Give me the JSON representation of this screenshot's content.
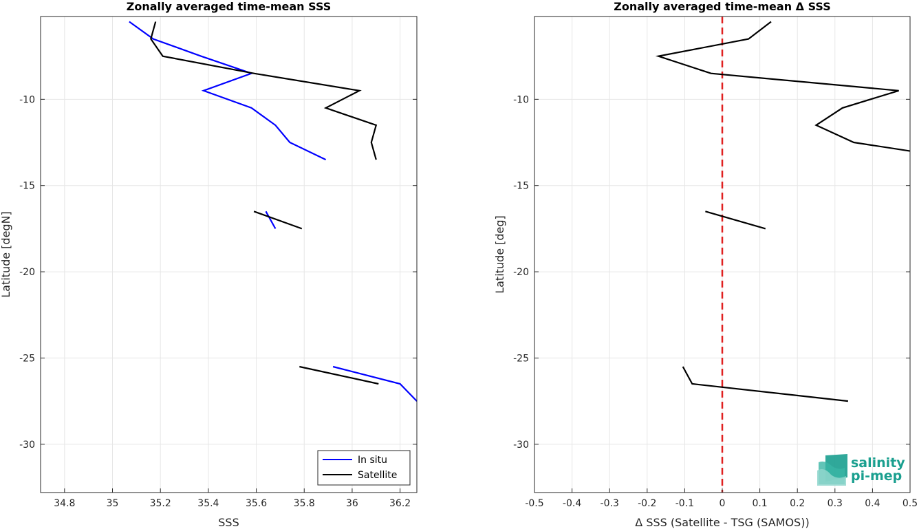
{
  "chart_data": [
    {
      "type": "line",
      "title": "Zonally averaged time-mean SSS",
      "xlabel": "SSS",
      "ylabel": "Latitude [degN]",
      "xlim": [
        34.7,
        36.27
      ],
      "ylim": [
        -32.8,
        -5.2
      ],
      "xticks": [
        34.8,
        35,
        35.2,
        35.4,
        35.6,
        35.8,
        36,
        36.2
      ],
      "xtick_labels": [
        "34.8",
        "35",
        "35.2",
        "35.4",
        "35.6",
        "35.8",
        "36",
        "36.2"
      ],
      "yticks": [
        -10,
        -15,
        -20,
        -25,
        -30
      ],
      "ytick_labels": [
        "-10",
        "-15",
        "-20",
        "-25",
        "-30"
      ],
      "grid": true,
      "legend_position": "bottom-right",
      "series": [
        {
          "name": "In situ",
          "color": "#0000ff",
          "segments": [
            [
              [
                35.07,
                -5.5
              ],
              [
                35.17,
                -6.5
              ],
              [
                35.37,
                -7.5
              ],
              [
                35.58,
                -8.5
              ],
              [
                35.38,
                -9.5
              ],
              [
                35.58,
                -10.5
              ],
              [
                35.68,
                -11.5
              ],
              [
                35.74,
                -12.5
              ],
              [
                35.89,
                -13.5
              ]
            ],
            [
              [
                35.64,
                -16.5
              ],
              [
                35.68,
                -17.5
              ]
            ],
            [
              [
                35.92,
                -25.5
              ],
              [
                36.2,
                -26.5
              ],
              [
                36.27,
                -27.5
              ]
            ]
          ]
        },
        {
          "name": "Satellite",
          "color": "#000000",
          "segments": [
            [
              [
                35.18,
                -5.5
              ],
              [
                35.16,
                -6.5
              ],
              [
                35.21,
                -7.5
              ],
              [
                35.59,
                -8.5
              ],
              [
                36.03,
                -9.5
              ],
              [
                35.89,
                -10.5
              ],
              [
                36.1,
                -11.5
              ],
              [
                36.08,
                -12.5
              ],
              [
                36.1,
                -13.5
              ]
            ],
            [
              [
                35.59,
                -16.5
              ],
              [
                35.79,
                -17.5
              ]
            ],
            [
              [
                35.78,
                -25.5
              ],
              [
                36.11,
                -26.5
              ]
            ]
          ]
        }
      ]
    },
    {
      "type": "line",
      "title": "Zonally averaged time-mean Δ SSS",
      "xlabel": "Δ SSS (Satellite - TSG (SAMOS))",
      "ylabel": "Latitude [deg]",
      "xlim": [
        -0.5,
        0.5
      ],
      "ylim": [
        -32.8,
        -5.2
      ],
      "xticks": [
        -0.5,
        -0.4,
        -0.3,
        -0.2,
        -0.1,
        0,
        0.1,
        0.2,
        0.3,
        0.4,
        0.5
      ],
      "xtick_labels": [
        "-0.5",
        "-0.4",
        "-0.3",
        "-0.2",
        "-0.1",
        "0",
        "0.1",
        "0.2",
        "0.3",
        "0.4",
        "0.5"
      ],
      "yticks": [
        -10,
        -15,
        -20,
        -25,
        -30
      ],
      "ytick_labels": [
        "-10",
        "-15",
        "-20",
        "-25",
        "-30"
      ],
      "grid": true,
      "reference_line": {
        "x": 0,
        "color": "#e02020",
        "style": "dashed"
      },
      "series": [
        {
          "color": "#000000",
          "segments": [
            [
              [
                0.13,
                -5.5
              ],
              [
                0.07,
                -6.5
              ],
              [
                -0.17,
                -7.5
              ],
              [
                -0.03,
                -8.5
              ],
              [
                0.47,
                -9.5
              ],
              [
                0.32,
                -10.5
              ],
              [
                0.25,
                -11.5
              ],
              [
                0.35,
                -12.5
              ],
              [
                0.5,
                -13.0
              ]
            ],
            [
              [
                -0.045,
                -16.5
              ],
              [
                0.115,
                -17.5
              ]
            ],
            [
              [
                -0.105,
                -25.5
              ],
              [
                -0.08,
                -26.5
              ],
              [
                0.335,
                -27.5
              ]
            ]
          ]
        }
      ]
    }
  ],
  "logo": {
    "line1": "salinity",
    "line2": "pi-mep",
    "color": "#1a9f8f"
  }
}
